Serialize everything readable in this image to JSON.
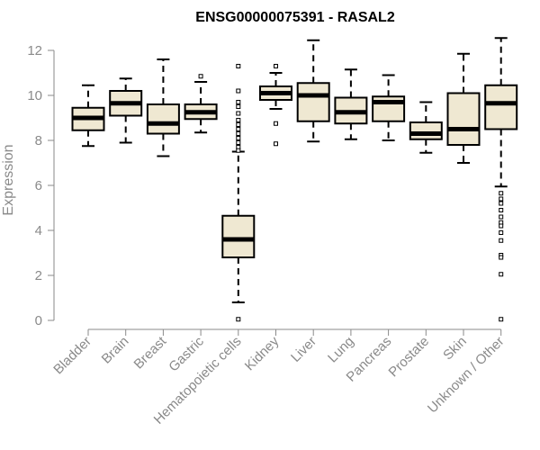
{
  "chart_data": {
    "type": "boxplot",
    "title": "ENSG00000075391 - RASAL2",
    "ylabel": "Expression",
    "xlabel": "",
    "ylim": [
      0,
      12.6
    ],
    "yticks": [
      0,
      2,
      4,
      6,
      8,
      10,
      12
    ],
    "grid": false,
    "box_fill": "#efe8d2",
    "box_stroke": "#000000",
    "categories": [
      "Bladder",
      "Brain",
      "Breast",
      "Gastric",
      "Hematopoietic cells",
      "Kidney",
      "Liver",
      "Lung",
      "Pancreas",
      "Prostate",
      "Skin",
      "Unknown / Other"
    ],
    "boxes": [
      {
        "whisker_low": 7.75,
        "q1": 8.45,
        "median": 9.0,
        "q3": 9.45,
        "whisker_high": 10.45,
        "outliers": []
      },
      {
        "whisker_low": 7.9,
        "q1": 9.1,
        "median": 9.65,
        "q3": 10.2,
        "whisker_high": 10.75,
        "outliers": []
      },
      {
        "whisker_low": 7.3,
        "q1": 8.3,
        "median": 8.75,
        "q3": 9.6,
        "whisker_high": 11.6,
        "outliers": []
      },
      {
        "whisker_low": 8.35,
        "q1": 8.95,
        "median": 9.25,
        "q3": 9.6,
        "whisker_high": 10.6,
        "outliers": [
          10.85
        ]
      },
      {
        "whisker_low": 0.8,
        "q1": 2.8,
        "median": 3.6,
        "q3": 4.65,
        "whisker_high": 7.5,
        "outliers": [
          11.3,
          10.2,
          9.7,
          9.5,
          9.2,
          8.9,
          8.7,
          8.5,
          8.3,
          8.1,
          7.9,
          7.7,
          7.55,
          0.05
        ]
      },
      {
        "whisker_low": 9.4,
        "q1": 9.8,
        "median": 10.1,
        "q3": 10.4,
        "whisker_high": 11.0,
        "outliers": [
          11.3,
          8.75,
          7.85
        ]
      },
      {
        "whisker_low": 7.95,
        "q1": 8.85,
        "median": 10.0,
        "q3": 10.55,
        "whisker_high": 12.45,
        "outliers": []
      },
      {
        "whisker_low": 8.05,
        "q1": 8.75,
        "median": 9.25,
        "q3": 9.9,
        "whisker_high": 11.15,
        "outliers": []
      },
      {
        "whisker_low": 8.0,
        "q1": 8.85,
        "median": 9.7,
        "q3": 9.95,
        "whisker_high": 10.9,
        "outliers": []
      },
      {
        "whisker_low": 7.45,
        "q1": 8.05,
        "median": 8.3,
        "q3": 8.8,
        "whisker_high": 9.7,
        "outliers": []
      },
      {
        "whisker_low": 7.0,
        "q1": 7.8,
        "median": 8.5,
        "q3": 10.1,
        "whisker_high": 11.85,
        "outliers": []
      },
      {
        "whisker_low": 5.95,
        "q1": 8.5,
        "median": 9.65,
        "q3": 10.45,
        "whisker_high": 12.55,
        "outliers": [
          5.65,
          5.4,
          5.2,
          4.9,
          4.6,
          4.35,
          4.2,
          3.9,
          3.55,
          2.9,
          2.8,
          2.05,
          0.05
        ]
      }
    ]
  }
}
